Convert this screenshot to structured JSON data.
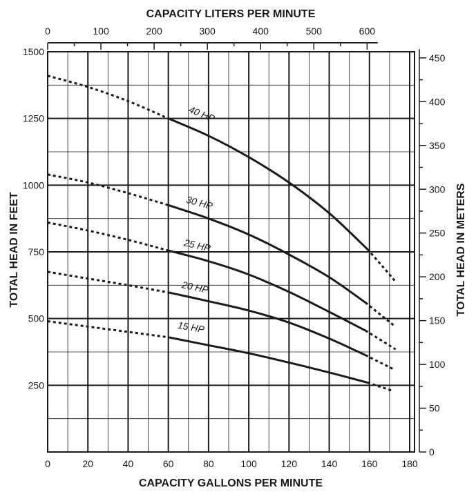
{
  "chart_data": {
    "type": "line",
    "top_axis_title": "CAPACITY LITERS PER MINUTE",
    "bottom_axis_title": "CAPACITY GALLONS PER MINUTE",
    "left_axis_title": "TOTAL HEAD IN FEET",
    "right_axis_title": "TOTAL HEAD IN METERS",
    "x_gpm": {
      "min": 0,
      "max": 180,
      "ticks": [
        0,
        20,
        40,
        60,
        80,
        100,
        120,
        140,
        160,
        180
      ],
      "minor_step": 10
    },
    "y_feet": {
      "min": 0,
      "max": 1500,
      "labeled_ticks": [
        250,
        500,
        750,
        1000,
        1250,
        1500
      ],
      "grid_step": 125
    },
    "x_lpm": {
      "min": 0,
      "max": 680,
      "ticks": [
        0,
        100,
        200,
        300,
        400,
        500,
        600
      ],
      "minor_step": 50
    },
    "y_meters": {
      "min": 0,
      "max": 457,
      "ticks": [
        0,
        50,
        100,
        150,
        200,
        250,
        300,
        350,
        400,
        450
      ],
      "minor_step": 25
    },
    "grid": true,
    "line_color": "#1a1a1a",
    "series": [
      {
        "name": "40 HP",
        "label_at": [
          76,
          1255
        ],
        "label_angle": 22,
        "dashed_left": [
          [
            0,
            1410
          ],
          [
            20,
            1368
          ],
          [
            40,
            1315
          ],
          [
            60,
            1250
          ]
        ],
        "solid": [
          [
            60,
            1250
          ],
          [
            80,
            1185
          ],
          [
            100,
            1105
          ],
          [
            120,
            1010
          ],
          [
            140,
            895
          ],
          [
            159,
            760
          ]
        ],
        "dashed_right": [
          [
            159,
            760
          ],
          [
            166,
            700
          ],
          [
            173,
            638
          ]
        ]
      },
      {
        "name": "30 HP",
        "label_at": [
          75,
          922
        ],
        "label_angle": 15,
        "dashed_left": [
          [
            0,
            1040
          ],
          [
            20,
            1010
          ],
          [
            40,
            970
          ],
          [
            60,
            925
          ]
        ],
        "solid": [
          [
            60,
            925
          ],
          [
            80,
            875
          ],
          [
            100,
            815
          ],
          [
            120,
            740
          ],
          [
            140,
            655
          ],
          [
            158,
            560
          ]
        ],
        "dashed_right": [
          [
            158,
            560
          ],
          [
            172,
            475
          ]
        ]
      },
      {
        "name": "25 HP",
        "label_at": [
          74,
          762
        ],
        "label_angle": 13,
        "dashed_left": [
          [
            0,
            860
          ],
          [
            20,
            830
          ],
          [
            40,
            795
          ],
          [
            60,
            755
          ]
        ],
        "solid": [
          [
            60,
            755
          ],
          [
            80,
            715
          ],
          [
            100,
            665
          ],
          [
            120,
            600
          ],
          [
            140,
            525
          ],
          [
            158,
            455
          ]
        ],
        "dashed_right": [
          [
            158,
            455
          ],
          [
            173,
            385
          ]
        ]
      },
      {
        "name": "20 HP",
        "label_at": [
          73,
          605
        ],
        "label_angle": 12,
        "dashed_left": [
          [
            0,
            675
          ],
          [
            20,
            650
          ],
          [
            40,
            625
          ],
          [
            60,
            598
          ]
        ],
        "solid": [
          [
            60,
            598
          ],
          [
            80,
            565
          ],
          [
            100,
            530
          ],
          [
            120,
            485
          ],
          [
            140,
            425
          ],
          [
            158,
            363
          ]
        ],
        "dashed_right": [
          [
            158,
            363
          ],
          [
            172,
            310
          ]
        ]
      },
      {
        "name": "15 HP",
        "label_at": [
          71,
          455
        ],
        "label_angle": 10,
        "dashed_left": [
          [
            0,
            490
          ],
          [
            20,
            470
          ],
          [
            40,
            450
          ],
          [
            60,
            430
          ]
        ],
        "solid": [
          [
            60,
            430
          ],
          [
            80,
            400
          ],
          [
            100,
            370
          ],
          [
            120,
            335
          ],
          [
            140,
            298
          ],
          [
            159,
            260
          ]
        ],
        "dashed_right": [
          [
            159,
            260
          ],
          [
            172,
            228
          ]
        ]
      }
    ]
  }
}
